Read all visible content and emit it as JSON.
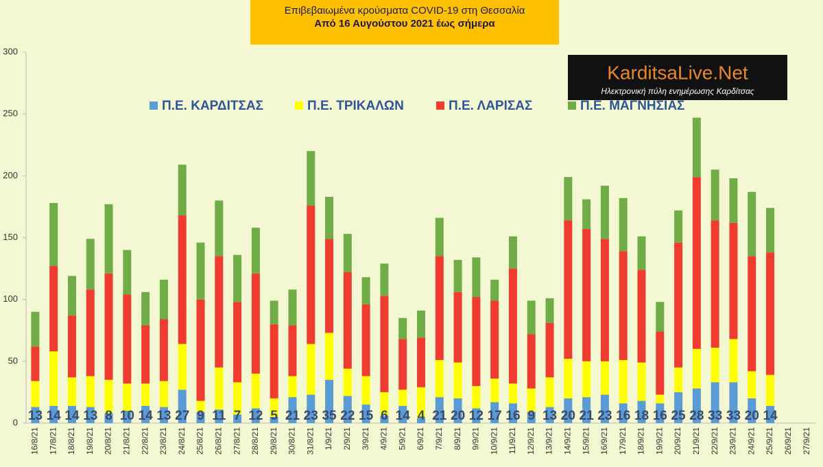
{
  "chart_data": {
    "type": "stacked_bar",
    "title": "Επιβεβαιωμένα κρούσματα COVID-19 στη Θεσσαλία",
    "subtitle": "Από 16 Αυγούστου 2021 έως σήμερα",
    "annotations": [
      "KarditsaLive.Net",
      "Ηλεκτρονική πύλη ενημέρωσης Καρδίτσας"
    ],
    "categories": [
      "16/8/21",
      "17/8/21",
      "18/8/21",
      "19/8/21",
      "20/8/21",
      "21/8/21",
      "22/8/21",
      "23/8/21",
      "24/8/21",
      "25/8/21",
      "26/8/21",
      "27/8/21",
      "28/8/21",
      "29/8/21",
      "30/8/21",
      "31/8/21",
      "1/9/21",
      "2/9/21",
      "3/9/21",
      "4/9/21",
      "5/9/21",
      "6/9/21",
      "7/9/21",
      "8/9/21",
      "9/9/21",
      "10/9/21",
      "11/9/21",
      "12/9/21",
      "13/9/21",
      "14/9/21",
      "15/9/21",
      "16/9/21",
      "17/9/21",
      "18/9/21",
      "19/9/21",
      "20/9/21",
      "21/9/21",
      "22/9/21",
      "23/9/21",
      "24/9/21",
      "25/9/21",
      "26/9/21",
      "27/9/21"
    ],
    "series": [
      {
        "name": "Π.Ε. ΚΑΡΔΙΤΣΑΣ",
        "color": "#5b9bd5",
        "data_labels": true,
        "values": [
          13,
          14,
          14,
          13,
          8,
          10,
          14,
          13,
          27,
          9,
          11,
          7,
          12,
          5,
          21,
          23,
          35,
          22,
          15,
          6,
          14,
          4,
          21,
          20,
          12,
          17,
          16,
          9,
          13,
          20,
          21,
          23,
          16,
          18,
          16,
          25,
          28,
          33,
          33,
          20,
          14,
          null,
          null
        ]
      },
      {
        "name": "Π.Ε. ΤΡΙΚΑΛΩΝ",
        "color": "#ffff00",
        "values": [
          21,
          44,
          23,
          25,
          27,
          22,
          18,
          21,
          37,
          9,
          34,
          26,
          28,
          15,
          17,
          41,
          38,
          22,
          23,
          19,
          13,
          25,
          30,
          29,
          18,
          19,
          16,
          19,
          24,
          32,
          29,
          27,
          35,
          31,
          7,
          20,
          32,
          28,
          35,
          22,
          25,
          null,
          null
        ]
      },
      {
        "name": "Π.Ε. ΛΑΡΙΣΑΣ",
        "color": "#f03c30",
        "values": [
          28,
          69,
          50,
          70,
          86,
          72,
          47,
          50,
          104,
          82,
          90,
          65,
          81,
          60,
          41,
          112,
          76,
          78,
          58,
          78,
          41,
          40,
          84,
          57,
          72,
          63,
          93,
          44,
          44,
          112,
          107,
          99,
          88,
          75,
          51,
          101,
          139,
          103,
          94,
          93,
          99,
          null,
          null
        ]
      },
      {
        "name": "Π.Ε. ΜΑΓΝΗΣΙΑΣ",
        "color": "#70ad47",
        "values": [
          28,
          51,
          32,
          41,
          56,
          36,
          27,
          32,
          41,
          46,
          45,
          38,
          37,
          19,
          29,
          44,
          34,
          31,
          22,
          26,
          17,
          22,
          31,
          26,
          32,
          17,
          26,
          27,
          20,
          35,
          24,
          43,
          43,
          27,
          24,
          26,
          48,
          41,
          36,
          52,
          36,
          null,
          null
        ]
      }
    ],
    "ylim": [
      0,
      300
    ],
    "yticks": [
      0,
      50,
      100,
      150,
      200,
      250,
      300
    ],
    "grid": false
  }
}
